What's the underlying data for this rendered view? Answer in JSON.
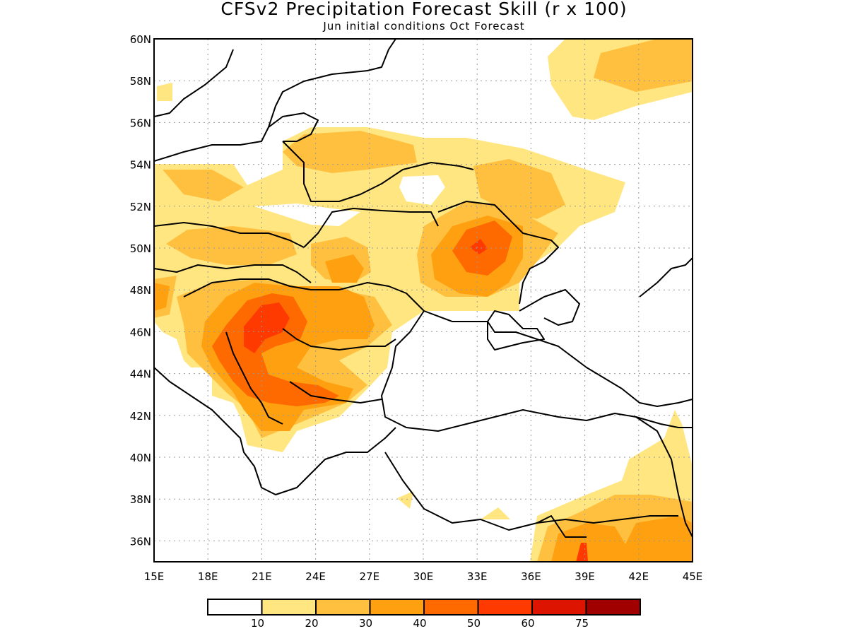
{
  "title": "CFSv2 Precipitation Forecast Skill (r x 100)",
  "subtitle": "Jun initial conditions  Oct Forecast",
  "map": {
    "lon_range": [
      15,
      45
    ],
    "lat_range": [
      35,
      60
    ],
    "lon_ticks": [
      "15E",
      "18E",
      "21E",
      "24E",
      "27E",
      "30E",
      "33E",
      "36E",
      "39E",
      "42E",
      "45E"
    ],
    "lat_ticks": [
      "60N",
      "58N",
      "56N",
      "54N",
      "52N",
      "50N",
      "48N",
      "46N",
      "44N",
      "42N",
      "40N",
      "38N",
      "36N"
    ],
    "gridlines": "dotted",
    "projection": "lat-lon"
  },
  "colorbar": {
    "colors": [
      "#ffffff",
      "#ffe680",
      "#ffc040",
      "#ffa010",
      "#ff6a00",
      "#ff3a00",
      "#dd1500",
      "#a00000"
    ],
    "labels": [
      "10",
      "20",
      "30",
      "40",
      "50",
      "60",
      "75"
    ]
  }
}
